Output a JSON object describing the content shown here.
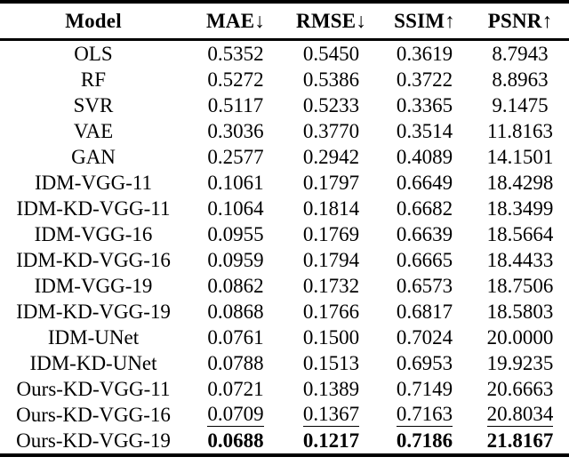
{
  "page": {
    "background_color": "#ffffff",
    "text_color": "#000000",
    "rule_color": "#000000"
  },
  "table": {
    "columns": [
      {
        "key": "model",
        "label": "Model"
      },
      {
        "key": "mae",
        "label": "MAE↓"
      },
      {
        "key": "rmse",
        "label": "RMSE↓"
      },
      {
        "key": "ssim",
        "label": "SSIM↑"
      },
      {
        "key": "psnr",
        "label": "PSNR↑"
      }
    ],
    "rows": [
      {
        "model": "OLS",
        "mae": "0.5352",
        "rmse": "0.5450",
        "ssim": "0.3619",
        "psnr": "8.7943",
        "emphasis": "none"
      },
      {
        "model": "RF",
        "mae": "0.5272",
        "rmse": "0.5386",
        "ssim": "0.3722",
        "psnr": "8.8963",
        "emphasis": "none"
      },
      {
        "model": "SVR",
        "mae": "0.5117",
        "rmse": "0.5233",
        "ssim": "0.3365",
        "psnr": "9.1475",
        "emphasis": "none"
      },
      {
        "model": "VAE",
        "mae": "0.3036",
        "rmse": "0.3770",
        "ssim": "0.3514",
        "psnr": "11.8163",
        "emphasis": "none"
      },
      {
        "model": "GAN",
        "mae": "0.2577",
        "rmse": "0.2942",
        "ssim": "0.4089",
        "psnr": "14.1501",
        "emphasis": "none"
      },
      {
        "model": "IDM-VGG-11",
        "mae": "0.1061",
        "rmse": "0.1797",
        "ssim": "0.6649",
        "psnr": "18.4298",
        "emphasis": "none"
      },
      {
        "model": "IDM-KD-VGG-11",
        "mae": "0.1064",
        "rmse": "0.1814",
        "ssim": "0.6682",
        "psnr": "18.3499",
        "emphasis": "none"
      },
      {
        "model": "IDM-VGG-16",
        "mae": "0.0955",
        "rmse": "0.1769",
        "ssim": "0.6639",
        "psnr": "18.5664",
        "emphasis": "none"
      },
      {
        "model": "IDM-KD-VGG-16",
        "mae": "0.0959",
        "rmse": "0.1794",
        "ssim": "0.6665",
        "psnr": "18.4433",
        "emphasis": "none"
      },
      {
        "model": "IDM-VGG-19",
        "mae": "0.0862",
        "rmse": "0.1732",
        "ssim": "0.6573",
        "psnr": "18.7506",
        "emphasis": "none"
      },
      {
        "model": "IDM-KD-VGG-19",
        "mae": "0.0868",
        "rmse": "0.1766",
        "ssim": "0.6817",
        "psnr": "18.5803",
        "emphasis": "none"
      },
      {
        "model": "IDM-UNet",
        "mae": "0.0761",
        "rmse": "0.1500",
        "ssim": "0.7024",
        "psnr": "20.0000",
        "emphasis": "none"
      },
      {
        "model": "IDM-KD-UNet",
        "mae": "0.0788",
        "rmse": "0.1513",
        "ssim": "0.6953",
        "psnr": "19.9235",
        "emphasis": "none"
      },
      {
        "model": "Ours-KD-VGG-11",
        "mae": "0.0721",
        "rmse": "0.1389",
        "ssim": "0.7149",
        "psnr": "20.6663",
        "emphasis": "none"
      },
      {
        "model": "Ours-KD-VGG-16",
        "mae": "0.0709",
        "rmse": "0.1367",
        "ssim": "0.7163",
        "psnr": "20.8034",
        "emphasis": "underline"
      },
      {
        "model": "Ours-KD-VGG-19",
        "mae": "0.0688",
        "rmse": "0.1217",
        "ssim": "0.7186",
        "psnr": "21.8167",
        "emphasis": "bold"
      }
    ]
  }
}
